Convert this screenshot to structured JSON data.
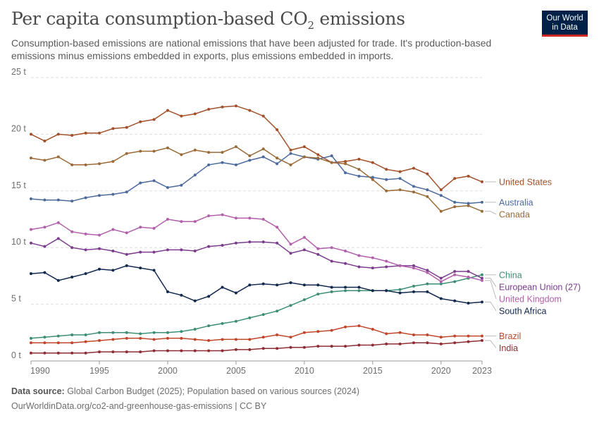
{
  "header": {
    "title_main": "Per capita consumption-based CO",
    "title_sub": "2",
    "title_end": " emissions",
    "subtitle": "Consumption-based emissions are national emissions that have been adjusted for trade. It's production-based emissions minus emissions embedded in exports, plus emissions embedded in imports.",
    "logo_line1": "Our World",
    "logo_line2": "in Data"
  },
  "footer": {
    "source_label": "Data source:",
    "source_text": " Global Carbon Budget (2025); Population based on various sources (2024)",
    "url_line": "OurWorldinData.org/co2-and-greenhouse-gas-emissions | CC BY"
  },
  "chart_data": {
    "type": "line",
    "x": [
      1990,
      1991,
      1992,
      1993,
      1994,
      1995,
      1996,
      1997,
      1998,
      1999,
      2000,
      2001,
      2002,
      2003,
      2004,
      2005,
      2006,
      2007,
      2008,
      2009,
      2010,
      2011,
      2012,
      2013,
      2014,
      2015,
      2016,
      2017,
      2018,
      2019,
      2020,
      2021,
      2022,
      2023
    ],
    "ylim": [
      0,
      25
    ],
    "yticks": [
      0,
      5,
      10,
      15,
      20,
      25
    ],
    "ytick_labels": [
      "0 t",
      "5 t",
      "10 t",
      "15 t",
      "20 t",
      "25 t"
    ],
    "xticks": [
      1990,
      1995,
      2000,
      2005,
      2010,
      2015,
      2020,
      2023
    ],
    "xtick_labels": [
      "1990",
      "1995",
      "2000",
      "2005",
      "2010",
      "2015",
      "2020",
      "2023"
    ],
    "grid": true,
    "series": [
      {
        "name": "United States",
        "color": "#a2512a",
        "values": [
          20.0,
          19.4,
          20.0,
          19.9,
          20.1,
          20.1,
          20.5,
          20.6,
          21.1,
          21.3,
          22.1,
          21.6,
          21.8,
          22.2,
          22.4,
          22.5,
          22.1,
          21.6,
          20.4,
          18.6,
          18.9,
          18.2,
          17.5,
          17.6,
          17.8,
          17.5,
          16.9,
          16.7,
          17.0,
          16.5,
          15.1,
          16.1,
          16.3,
          15.8
        ]
      },
      {
        "name": "Australia",
        "color": "#4c6a9c",
        "values": [
          14.3,
          14.2,
          14.2,
          14.1,
          14.4,
          14.6,
          14.7,
          14.9,
          15.7,
          15.9,
          15.3,
          15.5,
          16.4,
          17.3,
          17.5,
          17.3,
          17.7,
          18.0,
          17.4,
          18.3,
          18.0,
          17.8,
          18.1,
          16.6,
          16.3,
          16.2,
          16.0,
          16.1,
          15.4,
          15.1,
          14.6,
          14.0,
          13.9,
          14.0
        ]
      },
      {
        "name": "Canada",
        "color": "#9a6b38",
        "values": [
          17.9,
          17.7,
          18.0,
          17.3,
          17.3,
          17.4,
          17.6,
          18.3,
          18.5,
          18.5,
          18.8,
          18.2,
          18.6,
          18.4,
          18.4,
          18.9,
          18.1,
          18.7,
          17.9,
          17.3,
          18.0,
          17.9,
          17.5,
          17.4,
          16.9,
          16.0,
          15.0,
          15.1,
          14.9,
          14.5,
          13.2,
          13.6,
          13.7,
          13.2
        ]
      },
      {
        "name": "China",
        "color": "#3d8e75",
        "values": [
          2.0,
          2.1,
          2.2,
          2.3,
          2.3,
          2.5,
          2.5,
          2.5,
          2.4,
          2.5,
          2.5,
          2.6,
          2.8,
          3.1,
          3.3,
          3.5,
          3.8,
          4.1,
          4.4,
          4.9,
          5.4,
          5.9,
          6.1,
          6.2,
          6.2,
          6.2,
          6.2,
          6.3,
          6.6,
          6.8,
          6.8,
          7.0,
          7.3,
          7.6
        ]
      },
      {
        "name": "European Union (27)",
        "color": "#7b3c8e",
        "values": [
          10.4,
          10.1,
          10.8,
          10.0,
          9.8,
          9.9,
          9.7,
          9.4,
          9.6,
          9.6,
          9.8,
          9.8,
          9.7,
          10.1,
          10.2,
          10.4,
          10.5,
          10.5,
          10.4,
          9.5,
          9.8,
          9.4,
          8.8,
          8.6,
          8.3,
          8.2,
          8.3,
          8.4,
          8.4,
          8.0,
          7.3,
          7.9,
          7.9,
          7.3
        ]
      },
      {
        "name": "United Kingdom",
        "color": "#b260ac",
        "values": [
          11.6,
          11.8,
          12.2,
          11.4,
          11.2,
          11.1,
          11.6,
          11.3,
          11.8,
          11.7,
          12.5,
          12.3,
          12.3,
          12.8,
          12.9,
          12.6,
          12.6,
          12.5,
          11.8,
          10.3,
          10.9,
          9.9,
          10.0,
          9.7,
          9.3,
          9.1,
          8.8,
          8.4,
          8.2,
          7.8,
          7.0,
          7.6,
          7.4,
          7.1
        ]
      },
      {
        "name": "South Africa",
        "color": "#12294e",
        "values": [
          7.7,
          7.8,
          7.1,
          7.4,
          7.7,
          8.1,
          8.0,
          8.4,
          8.2,
          8.0,
          6.1,
          5.8,
          5.3,
          5.7,
          6.5,
          6.0,
          6.7,
          6.8,
          6.7,
          6.9,
          6.7,
          6.7,
          6.5,
          6.5,
          6.5,
          6.2,
          6.2,
          6.0,
          6.1,
          6.1,
          5.5,
          5.3,
          5.1,
          5.2
        ]
      },
      {
        "name": "Brazil",
        "color": "#c0472b",
        "values": [
          1.6,
          1.6,
          1.6,
          1.6,
          1.7,
          1.8,
          1.9,
          2.0,
          2.0,
          1.9,
          2.0,
          2.0,
          1.9,
          1.8,
          1.9,
          1.9,
          1.9,
          2.1,
          2.3,
          2.1,
          2.5,
          2.6,
          2.7,
          3.0,
          3.1,
          2.8,
          2.4,
          2.5,
          2.3,
          2.3,
          2.1,
          2.2,
          2.2,
          2.2
        ]
      },
      {
        "name": "India",
        "color": "#8f2d35",
        "values": [
          0.7,
          0.7,
          0.7,
          0.7,
          0.7,
          0.8,
          0.8,
          0.8,
          0.8,
          0.9,
          0.9,
          0.9,
          0.9,
          0.9,
          0.9,
          1.0,
          1.0,
          1.1,
          1.1,
          1.2,
          1.2,
          1.3,
          1.3,
          1.3,
          1.4,
          1.4,
          1.5,
          1.5,
          1.6,
          1.6,
          1.5,
          1.6,
          1.7,
          1.8
        ]
      }
    ]
  }
}
